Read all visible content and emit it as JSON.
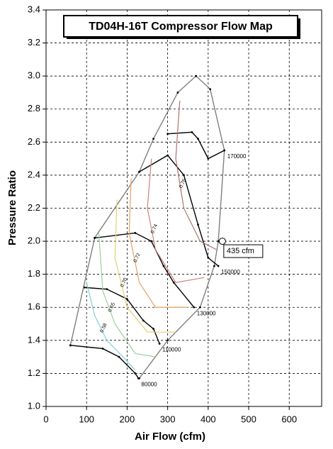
{
  "chart_data": {
    "type": "line",
    "title": "TD04H-16T Compressor Flow Map",
    "x_label": "Air Flow (cfm)",
    "y_label": "Pressure Ratio",
    "xlim": [
      0,
      680
    ],
    "ylim": [
      1.0,
      3.4
    ],
    "xticks": [
      0,
      100,
      200,
      300,
      400,
      500,
      600
    ],
    "yticks": [
      {
        "value": 1.0,
        "label": "1.0"
      },
      1.2,
      1.4,
      1.6,
      1.8,
      {
        "value": 2.0,
        "label": "2.0"
      },
      2.2,
      2.4,
      2.6,
      2.8,
      {
        "value": 3.0,
        "label": "3.0"
      },
      3.2,
      3.4
    ],
    "grid": true,
    "series": [
      {
        "color": "#808080",
        "x": [
          60,
          120,
          230,
          265,
          325,
          370
        ],
        "values": [
          1.37,
          2.02,
          2.42,
          2.62,
          2.9,
          3.0
        ]
      },
      {
        "color": "#808080",
        "x": [
          370,
          405,
          440,
          425,
          415,
          380,
          300,
          230
        ],
        "values": [
          3.0,
          2.92,
          2.55,
          2.0,
          1.85,
          1.6,
          1.4,
          1.17
        ]
      },
      {
        "name": "80000",
        "color": "#000000",
        "x": [
          60,
          140,
          180,
          220,
          228
        ],
        "values": [
          1.37,
          1.35,
          1.3,
          1.2,
          1.17
        ]
      },
      {
        "name": "110000",
        "color": "#000000",
        "x": [
          95,
          150,
          200,
          240,
          265,
          280
        ],
        "values": [
          1.72,
          1.71,
          1.65,
          1.52,
          1.47,
          1.38
        ]
      },
      {
        "name": "130000",
        "color": "#000000",
        "x": [
          120,
          220,
          260,
          290,
          315,
          365
        ],
        "values": [
          2.02,
          2.05,
          2.0,
          1.85,
          1.75,
          1.6
        ]
      },
      {
        "name": "150000",
        "color": "#000000",
        "x": [
          230,
          300,
          340,
          375,
          400,
          425
        ],
        "values": [
          2.42,
          2.52,
          2.4,
          2.1,
          1.9,
          1.85
        ]
      },
      {
        "name": "170000",
        "color": "#000000",
        "x": [
          300,
          360,
          375,
          400,
          440
        ],
        "values": [
          2.65,
          2.66,
          2.62,
          2.5,
          2.55
        ]
      },
      {
        "name": "0.58",
        "color": "#7fd0d8",
        "x": [
          100,
          120,
          150,
          190,
          220
        ],
        "values": [
          1.75,
          1.55,
          1.4,
          1.3,
          1.22
        ]
      },
      {
        "name": "0.65",
        "color": "#9ed09e",
        "x": [
          130,
          140,
          170,
          220,
          270
        ],
        "values": [
          2.05,
          1.7,
          1.5,
          1.32,
          1.3
        ]
      },
      {
        "name": "0.70",
        "color": "#e0d070",
        "x": [
          175,
          170,
          200,
          250,
          320
        ],
        "values": [
          2.25,
          1.9,
          1.6,
          1.45,
          1.45
        ]
      },
      {
        "name": "0.72",
        "color": "#e8a060",
        "x": [
          210,
          205,
          230,
          270,
          350
        ],
        "values": [
          2.38,
          2.05,
          1.75,
          1.6,
          1.6
        ]
      },
      {
        "name": "0.74",
        "color": "#d08080",
        "x": [
          260,
          250,
          270,
          320,
          390
        ],
        "values": [
          2.5,
          2.2,
          1.95,
          1.75,
          1.78
        ]
      },
      {
        "name": "0.76",
        "color": "#b07070",
        "x": [
          330,
          320,
          340,
          380,
          420
        ],
        "values": [
          2.85,
          2.5,
          2.2,
          2.0,
          1.95
        ]
      }
    ],
    "annotation": {
      "x": 435,
      "y": 2.0,
      "label": "435 cfm"
    }
  }
}
